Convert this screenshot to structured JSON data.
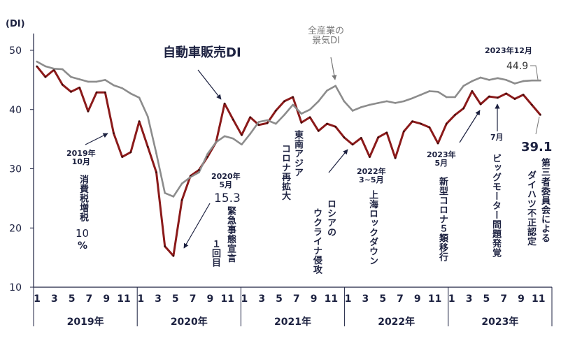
{
  "chart_data": {
    "type": "line",
    "ylabel": "(DI)",
    "ylim": [
      10,
      50
    ],
    "yticks": [
      10,
      20,
      30,
      40,
      50
    ],
    "grid": false,
    "years": [
      "2019年",
      "2020年",
      "2021年",
      "2022年",
      "2023年"
    ],
    "month_ticks": [
      "1",
      "3",
      "5",
      "7",
      "9",
      "11"
    ],
    "x_start": "2019-01",
    "x_end": "2023-12",
    "series": [
      {
        "name": "自動車販売DI",
        "color": "#8b1a1a",
        "values": [
          47.3,
          45.5,
          46.7,
          44.2,
          43.0,
          43.7,
          39.7,
          42.9,
          42.9,
          36.0,
          32.0,
          32.8,
          38.0,
          33.7,
          29.4,
          16.9,
          15.3,
          24.7,
          28.8,
          29.8,
          32.0,
          34.5,
          41.0,
          38.3,
          35.7,
          38.7,
          37.4,
          37.7,
          39.8,
          41.4,
          42.1,
          37.8,
          38.7,
          36.4,
          37.6,
          37.1,
          35.3,
          34.1,
          35.2,
          32.0,
          35.3,
          36.1,
          31.8,
          36.3,
          38.0,
          37.6,
          37.0,
          34.3,
          37.6,
          39.1,
          40.2,
          43.1,
          40.9,
          42.2,
          42.0,
          42.7,
          41.8,
          42.5,
          40.8,
          39.1
        ]
      },
      {
        "name": "全産業の景気DI",
        "color": "#8c8c8c",
        "values": [
          48.1,
          47.3,
          46.9,
          46.8,
          45.5,
          45.1,
          44.7,
          44.7,
          45.0,
          44.1,
          43.6,
          42.7,
          42.0,
          38.8,
          32.6,
          25.9,
          25.3,
          27.5,
          28.6,
          29.4,
          32.5,
          34.5,
          35.5,
          35.1,
          34.1,
          35.9,
          37.9,
          38.2,
          37.6,
          39.1,
          40.8,
          39.3,
          40.0,
          41.4,
          43.2,
          44.0,
          41.4,
          39.8,
          40.4,
          40.8,
          41.1,
          41.4,
          41.1,
          41.4,
          41.9,
          42.5,
          43.1,
          43.0,
          42.1,
          42.1,
          44.0,
          44.8,
          45.4,
          45.0,
          45.3,
          45.0,
          44.4,
          44.8,
          44.9,
          44.9
        ]
      }
    ],
    "annotations": {
      "auto_label": "自動車販売DI",
      "all_label_1": "全産業の",
      "all_label_2": "景気DI",
      "end_date": "2023年12月",
      "end_all": "44.9",
      "end_auto": "39.1",
      "tax_date_1": "2019年",
      "tax_date_2": "10月",
      "tax_text": "消費税増税",
      "tax_rate": "10",
      "tax_pct": "%",
      "covid_date_1": "2020年",
      "covid_date_2": "5月",
      "covid_value": "15.3",
      "covid_text_1": "緊急事態宣言",
      "covid_text_2": "１回目",
      "sea_text_1": "東南アジア",
      "sea_text_2": "コロナ再拡大",
      "russia_text_1": "ロシアの",
      "russia_text_2": "ウクライナ侵攻",
      "shanghai_date_1": "2022年",
      "shanghai_date_2": "3~5月",
      "shanghai_text": "上海ロックダウン",
      "class5_date_1": "2023年",
      "class5_date_2": "5月",
      "class5_text": "新型コロナ５類移行",
      "bm_date": "7月",
      "bm_text": "ビッグモーター問題発覚",
      "daihatsu_text_1": "第三者委員会による",
      "daihatsu_text_2": "ダイハツ不正認定"
    }
  }
}
